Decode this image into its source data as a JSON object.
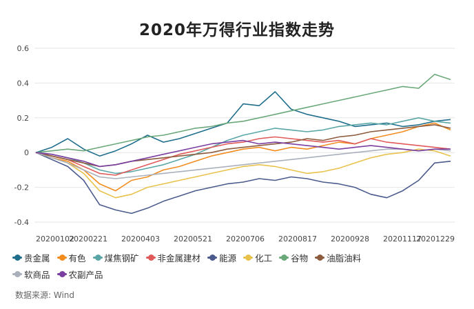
{
  "chart_data": {
    "type": "line",
    "title": "2020年万得行业指数走势",
    "x_ticks": [
      "20200102",
      "20200221",
      "20200403",
      "20200521",
      "20200706",
      "20200817",
      "20200928",
      "20201117",
      "20201229"
    ],
    "y_ticks": [
      "0.6",
      "0.4",
      "0.2",
      "0",
      "-0.2",
      "-0.4"
    ],
    "ylim": [
      -0.4,
      0.6
    ],
    "grid": "horizontal",
    "legend_position": "bottom",
    "series": [
      {
        "name": "贵金属",
        "color": "#1f6e8c",
        "values": [
          0,
          0.03,
          0.08,
          0.02,
          -0.02,
          0.01,
          0.05,
          0.1,
          0.06,
          0.08,
          0.11,
          0.14,
          0.17,
          0.28,
          0.27,
          0.35,
          0.25,
          0.22,
          0.2,
          0.18,
          0.15,
          0.16,
          0.17,
          0.15,
          0.16,
          0.18,
          0.19
        ]
      },
      {
        "name": "有色",
        "color": "#f28c1e",
        "values": [
          0,
          -0.03,
          -0.05,
          -0.1,
          -0.18,
          -0.22,
          -0.16,
          -0.14,
          -0.1,
          -0.08,
          -0.05,
          -0.02,
          0,
          0.02,
          0.03,
          0.01,
          0.03,
          0.02,
          0.04,
          0.06,
          0.05,
          0.08,
          0.1,
          0.12,
          0.15,
          0.17,
          0.13
        ]
      },
      {
        "name": "煤焦钢矿",
        "color": "#5aa6a6",
        "values": [
          0,
          -0.01,
          -0.03,
          -0.06,
          -0.1,
          -0.12,
          -0.11,
          -0.09,
          -0.07,
          -0.04,
          -0.01,
          0.03,
          0.07,
          0.1,
          0.12,
          0.14,
          0.13,
          0.12,
          0.13,
          0.15,
          0.16,
          0.17,
          0.16,
          0.18,
          0.2,
          0.18,
          0.17
        ]
      },
      {
        "name": "非金属建材",
        "color": "#e05a5a",
        "values": [
          0,
          -0.02,
          -0.04,
          -0.08,
          -0.12,
          -0.13,
          -0.1,
          -0.07,
          -0.04,
          -0.01,
          0.01,
          0.03,
          0.05,
          0.06,
          0.08,
          0.09,
          0.08,
          0.07,
          0.06,
          0.07,
          0.05,
          0.08,
          0.06,
          0.05,
          0.04,
          0.03,
          0.02
        ]
      },
      {
        "name": "能源",
        "color": "#4a5a8c",
        "values": [
          0,
          -0.04,
          -0.08,
          -0.16,
          -0.3,
          -0.33,
          -0.35,
          -0.32,
          -0.28,
          -0.25,
          -0.22,
          -0.2,
          -0.18,
          -0.17,
          -0.15,
          -0.16,
          -0.14,
          -0.15,
          -0.17,
          -0.18,
          -0.2,
          -0.24,
          -0.26,
          -0.22,
          -0.16,
          -0.06,
          -0.05
        ]
      },
      {
        "name": "化工",
        "color": "#e8c24a",
        "values": [
          0,
          -0.03,
          -0.06,
          -0.12,
          -0.22,
          -0.26,
          -0.24,
          -0.2,
          -0.18,
          -0.16,
          -0.14,
          -0.12,
          -0.1,
          -0.08,
          -0.07,
          -0.08,
          -0.1,
          -0.12,
          -0.11,
          -0.09,
          -0.06,
          -0.03,
          -0.01,
          0,
          0.02,
          0.01,
          -0.02
        ]
      },
      {
        "name": "谷物",
        "color": "#6aa87a",
        "values": [
          0,
          0.01,
          0.02,
          0.01,
          0.03,
          0.05,
          0.07,
          0.09,
          0.1,
          0.12,
          0.14,
          0.15,
          0.17,
          0.18,
          0.2,
          0.22,
          0.24,
          0.26,
          0.28,
          0.3,
          0.32,
          0.34,
          0.36,
          0.38,
          0.37,
          0.45,
          0.42
        ]
      },
      {
        "name": "油脂油料",
        "color": "#8c5a3c",
        "values": [
          0,
          -0.02,
          -0.04,
          -0.06,
          -0.08,
          -0.07,
          -0.05,
          -0.04,
          -0.03,
          -0.02,
          -0.01,
          0,
          0.02,
          0.03,
          0.04,
          0.05,
          0.06,
          0.08,
          0.07,
          0.09,
          0.1,
          0.12,
          0.13,
          0.14,
          0.15,
          0.16,
          0.14
        ]
      },
      {
        "name": "软商品",
        "color": "#aab0bb",
        "values": [
          0,
          -0.03,
          -0.06,
          -0.1,
          -0.14,
          -0.15,
          -0.14,
          -0.13,
          -0.12,
          -0.11,
          -0.1,
          -0.09,
          -0.08,
          -0.07,
          -0.06,
          -0.05,
          -0.04,
          -0.03,
          -0.02,
          -0.01,
          0,
          0.01,
          0.02,
          0.02,
          0.01,
          0.02,
          0.01
        ]
      },
      {
        "name": "农副产品",
        "color": "#7a3ea0",
        "values": [
          0,
          -0.01,
          -0.03,
          -0.05,
          -0.08,
          -0.07,
          -0.05,
          -0.03,
          -0.01,
          0.01,
          0.03,
          0.05,
          0.06,
          0.07,
          0.05,
          0.06,
          0.05,
          0.04,
          0.03,
          0.02,
          0.03,
          0.04,
          0.03,
          0.02,
          0.01,
          0.02,
          0.02
        ]
      }
    ]
  },
  "source_label": "数据来源: Wind"
}
